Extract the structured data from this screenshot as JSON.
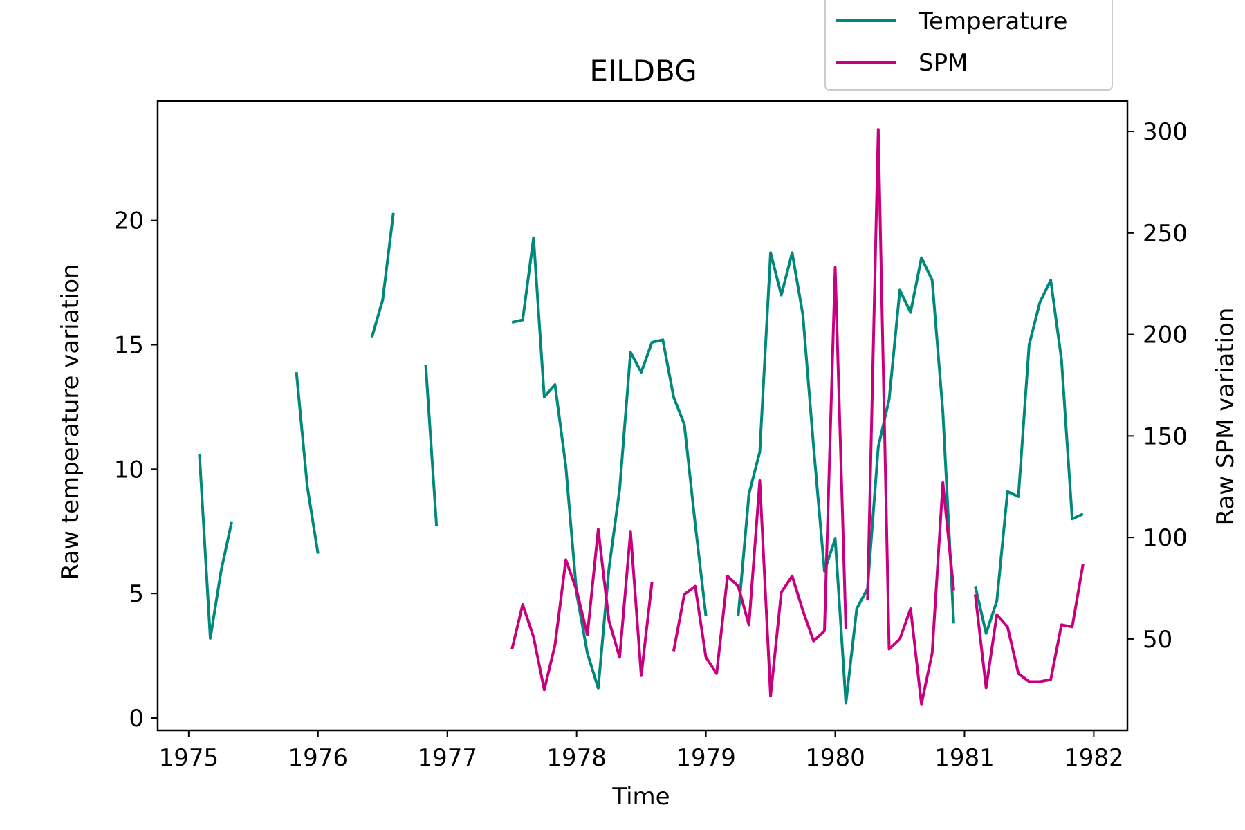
{
  "chart_data": {
    "type": "line",
    "title": "EILDBG",
    "xlabel": "Time",
    "ylabel_left": "Raw temperature variation",
    "ylabel_right": "Raw SPM variation",
    "xlim": [
      1974.76,
      1982.26
    ],
    "ylim_left": [
      -0.5,
      24.8
    ],
    "ylim_right": [
      5,
      315
    ],
    "x_ticks": [
      1975,
      1976,
      1977,
      1978,
      1979,
      1980,
      1981,
      1982
    ],
    "y_ticks_left": [
      0,
      5,
      10,
      15,
      20
    ],
    "y_ticks_right": [
      50,
      100,
      150,
      200,
      250,
      300
    ],
    "legend_position": "upper-right (above axes)",
    "grid": false,
    "series": [
      {
        "name": "Temperature",
        "axis": "left",
        "color": "#00897b",
        "x": [
          1975.083,
          1975.167,
          1975.25,
          1975.333,
          1975.417,
          1975.5,
          1975.583,
          1975.667,
          1975.75,
          1975.833,
          1975.917,
          1976.0,
          1976.083,
          1976.167,
          1976.25,
          1976.333,
          1976.417,
          1976.5,
          1976.583,
          1976.667,
          1976.75,
          1976.833,
          1976.917,
          1977.0,
          1977.083,
          1977.167,
          1977.25,
          1977.333,
          1977.417,
          1977.5,
          1977.583,
          1977.667,
          1977.75,
          1977.833,
          1977.917,
          1978.0,
          1978.083,
          1978.167,
          1978.25,
          1978.333,
          1978.417,
          1978.5,
          1978.583,
          1978.667,
          1978.75,
          1978.833,
          1978.917,
          1979.0,
          1979.083,
          1979.167,
          1979.25,
          1979.333,
          1979.417,
          1979.5,
          1979.583,
          1979.667,
          1979.75,
          1979.833,
          1979.917,
          1980.0,
          1980.083,
          1980.167,
          1980.25,
          1980.333,
          1980.417,
          1980.5,
          1980.583,
          1980.667,
          1980.75,
          1980.833,
          1980.917,
          1981.0,
          1981.083,
          1981.167,
          1981.25,
          1981.333,
          1981.417,
          1981.5,
          1981.583,
          1981.667,
          1981.75,
          1981.833,
          1981.917
        ],
        "y": [
          10.6,
          3.2,
          5.9,
          7.9,
          null,
          null,
          null,
          null,
          null,
          13.9,
          9.3,
          6.6,
          null,
          null,
          null,
          null,
          15.3,
          16.8,
          20.3,
          null,
          null,
          14.2,
          7.7,
          null,
          null,
          null,
          null,
          null,
          null,
          15.9,
          16.0,
          19.3,
          12.9,
          13.4,
          10.1,
          5.0,
          2.6,
          1.2,
          6.0,
          9.2,
          14.7,
          13.9,
          15.1,
          15.2,
          12.9,
          11.8,
          7.8,
          4.1,
          null,
          null,
          4.1,
          9.0,
          10.7,
          18.7,
          17.0,
          18.7,
          16.2,
          10.9,
          5.9,
          7.2,
          0.6,
          4.4,
          5.2,
          10.9,
          12.8,
          17.2,
          16.3,
          18.5,
          17.6,
          12.3,
          3.8,
          null,
          5.3,
          3.4,
          4.7,
          9.1,
          8.9,
          15.0,
          16.7,
          17.6,
          14.4,
          8.0,
          8.2
        ]
      },
      {
        "name": "SPM",
        "axis": "right",
        "color": "#c8007f",
        "x": [
          1977.5,
          1977.583,
          1977.667,
          1977.75,
          1977.833,
          1977.917,
          1978.0,
          1978.083,
          1978.167,
          1978.25,
          1978.333,
          1978.417,
          1978.5,
          1978.583,
          1978.667,
          1978.75,
          1978.833,
          1978.917,
          1979.0,
          1979.083,
          1979.167,
          1979.25,
          1979.333,
          1979.417,
          1979.5,
          1979.583,
          1979.667,
          1979.75,
          1979.833,
          1979.917,
          1980.0,
          1980.083,
          1980.167,
          1980.25,
          1980.333,
          1980.417,
          1980.5,
          1980.583,
          1980.667,
          1980.75,
          1980.833,
          1980.917,
          1981.0,
          1981.083,
          1981.167,
          1981.25,
          1981.333,
          1981.417,
          1981.5,
          1981.583,
          1981.667,
          1981.75,
          1981.833,
          1981.917
        ],
        "y": [
          45,
          67,
          51,
          25,
          47,
          89,
          74,
          52,
          104,
          59,
          41,
          103,
          32,
          78,
          null,
          44,
          72,
          76,
          41,
          33,
          81,
          76,
          57,
          128,
          22,
          73,
          81,
          64,
          49,
          54,
          233,
          55,
          null,
          69,
          301,
          45,
          50,
          65,
          18,
          43,
          127,
          74,
          null,
          72,
          26,
          62,
          56,
          33,
          29,
          29,
          30,
          57,
          56,
          87
        ]
      }
    ]
  }
}
